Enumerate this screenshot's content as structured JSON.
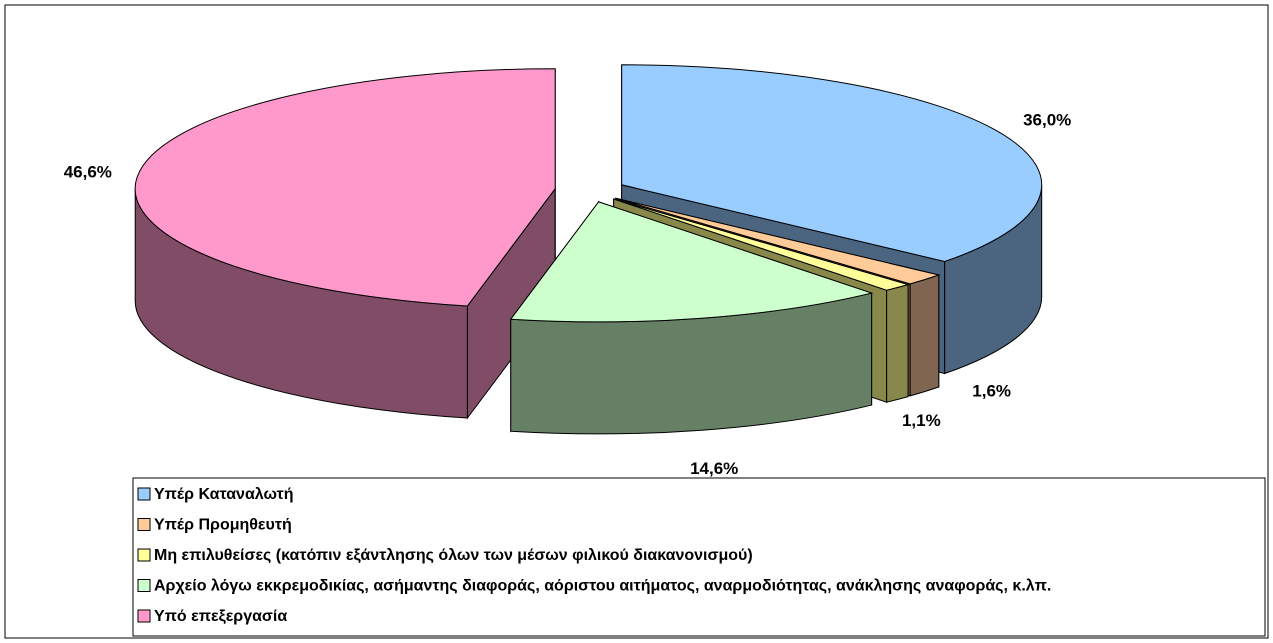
{
  "chart_data": {
    "type": "pie",
    "categories": [
      "Υπέρ Καταναλωτή",
      "Υπέρ Προμηθευτή",
      "Μη επιλυθείσες (κατόπιν εξάντλησης όλων των μέσων φιλικού διακανονισμού)",
      "Αρχείο λόγω εκκρεμοδικίας, ασήμαντης διαφοράς,  αόριστου αιτήματος, αναρμοδιότητας, ανάκλησης αναφοράς, κ.λπ.",
      "Υπό επεξεργασία"
    ],
    "values": [
      36.0,
      1.6,
      1.1,
      14.6,
      46.6
    ],
    "value_labels": [
      "36,0%",
      "1,6%",
      "1,1%",
      "14,6%",
      "46,6%"
    ],
    "colors": [
      "#99ccff",
      "#ffcc99",
      "#ffff99",
      "#ccffcc",
      "#ff99cc"
    ],
    "side_colors": [
      "#4b6580",
      "#806650",
      "#88884a",
      "#668066",
      "#804c66"
    ],
    "legend": "bottom"
  }
}
